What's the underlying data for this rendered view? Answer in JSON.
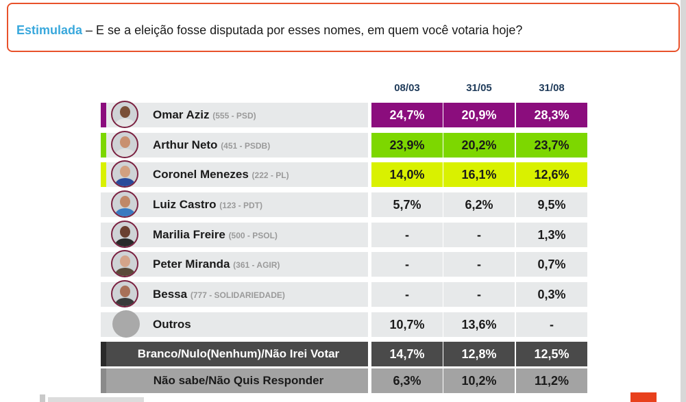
{
  "question": {
    "highlight": "Estimulada",
    "text": " – E se a eleição fosse disputada por esses nomes, em quem você votaria hoje?"
  },
  "columns": [
    "08/03",
    "31/05",
    "31/08"
  ],
  "candidates": [
    {
      "name": "Omar Aziz",
      "party": "(555 - PSD)",
      "values": [
        "24,7%",
        "20,9%",
        "28,3%"
      ],
      "color": "#8b0d7d"
    },
    {
      "name": "Arthur Neto",
      "party": "(451 - PSDB)",
      "values": [
        "23,9%",
        "20,2%",
        "23,7%"
      ],
      "color": "#7dd700"
    },
    {
      "name": "Coronel Menezes",
      "party": "(222 - PL)",
      "values": [
        "14,0%",
        "16,1%",
        "12,6%"
      ],
      "color": "#d9f100"
    },
    {
      "name": "Luiz Castro",
      "party": "(123 - PDT)",
      "values": [
        "5,7%",
        "6,2%",
        "9,5%"
      ],
      "color": ""
    },
    {
      "name": "Marilia Freire",
      "party": "(500 - PSOL)",
      "values": [
        "-",
        "-",
        "1,3%"
      ],
      "color": ""
    },
    {
      "name": "Peter Miranda",
      "party": "(361 - AGIR)",
      "values": [
        "-",
        "-",
        "0,7%"
      ],
      "color": ""
    },
    {
      "name": "Bessa",
      "party": "(777 - SOLIDARIEDADE)",
      "values": [
        "-",
        "-",
        "0,3%"
      ],
      "color": ""
    }
  ],
  "outros": {
    "name": "Outros",
    "values": [
      "10,7%",
      "13,6%",
      "-"
    ]
  },
  "branco": {
    "label": "Branco/Nulo(Nenhum)/Não Irei Votar",
    "values": [
      "14,7%",
      "12,8%",
      "12,5%"
    ]
  },
  "nao_sabe": {
    "label": "Não sabe/Não Quis Responder",
    "values": [
      "6,3%",
      "10,2%",
      "11,2%"
    ]
  }
}
